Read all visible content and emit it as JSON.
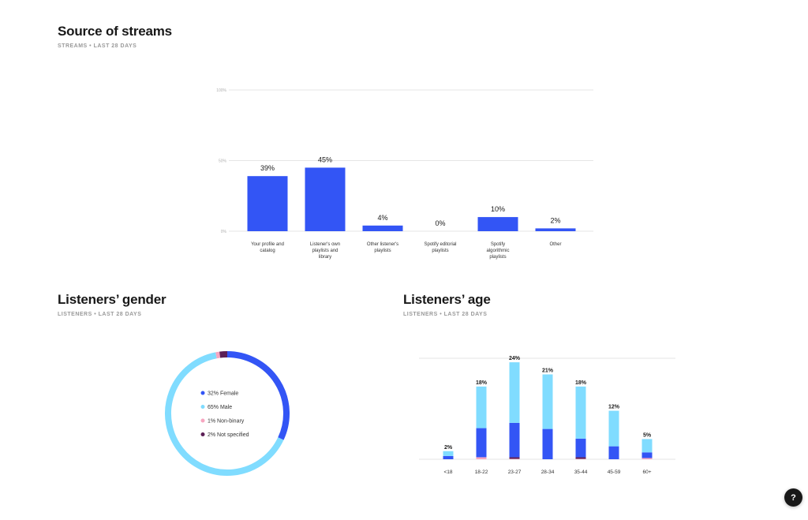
{
  "colors": {
    "accent_blue": "#3355f5",
    "light_blue": "#80dcff",
    "pink": "#f7a6c0",
    "purple": "#5c1f56",
    "grid": "#e6e6e6",
    "text": "#181818",
    "muted": "#9a9a9a"
  },
  "source": {
    "title": "Source of streams",
    "subtitle": "STREAMS • LAST 28 DAYS"
  },
  "gender": {
    "title": "Listeners’ gender",
    "subtitle": "LISTENERS • LAST 28 DAYS",
    "legend": [
      {
        "label": "32% Female",
        "color": "#3355f5"
      },
      {
        "label": "65% Male",
        "color": "#80dcff"
      },
      {
        "label": "1% Non-binary",
        "color": "#f7a6c0"
      },
      {
        "label": "2% Not specified",
        "color": "#5c1f56"
      }
    ]
  },
  "age": {
    "title": "Listeners’ age",
    "subtitle": "LISTENERS • LAST 28 DAYS"
  },
  "help": {
    "label": "?"
  },
  "chart_data": [
    {
      "type": "bar",
      "title": "Source of streams",
      "subtitle": "STREAMS • LAST 28 DAYS",
      "categories": [
        "Your profile and catalog",
        "Listener's own playlists and library",
        "Other listener's playlists",
        "Spotify editorial playlists",
        "Spotify algorithmic playlists",
        "Other"
      ],
      "values": [
        39,
        45,
        4,
        0,
        10,
        2
      ],
      "value_labels": [
        "39%",
        "45%",
        "4%",
        "0%",
        "10%",
        "2%"
      ],
      "yticks": [
        "0%",
        "50%",
        "100%"
      ],
      "ylim": [
        0,
        100
      ],
      "grid": true,
      "xlabel": "",
      "ylabel": ""
    },
    {
      "type": "pie",
      "title": "Listeners’ gender",
      "subtitle": "LISTENERS • LAST 28 DAYS",
      "donut": true,
      "categories": [
        "Female",
        "Male",
        "Non-binary",
        "Not specified"
      ],
      "values": [
        32,
        65,
        1,
        2
      ],
      "legend_position": "center"
    },
    {
      "type": "bar",
      "stacked": true,
      "title": "Listeners’ age",
      "subtitle": "LISTENERS • LAST 28 DAYS",
      "categories": [
        "<18",
        "18-22",
        "23-27",
        "28-34",
        "35-44",
        "45-59",
        "60+"
      ],
      "totals": [
        2,
        18,
        24,
        21,
        18,
        12,
        5
      ],
      "total_labels": [
        "2%",
        "18%",
        "24%",
        "21%",
        "18%",
        "12%",
        "5%"
      ],
      "series": [
        {
          "name": "Female",
          "values": [
            0.8,
            7.2,
            8.5,
            7.5,
            4.6,
            3.2,
            1.4
          ]
        },
        {
          "name": "Male",
          "values": [
            1.2,
            10.3,
            15.0,
            13.5,
            12.9,
            8.8,
            3.3
          ]
        },
        {
          "name": "Non-binary",
          "values": [
            0,
            0.5,
            0.1,
            0,
            0.1,
            0,
            0.3
          ]
        },
        {
          "name": "Not specified",
          "values": [
            0,
            0,
            0.4,
            0,
            0.4,
            0,
            0
          ]
        }
      ],
      "ylim": [
        0,
        25
      ],
      "grid": true
    }
  ]
}
